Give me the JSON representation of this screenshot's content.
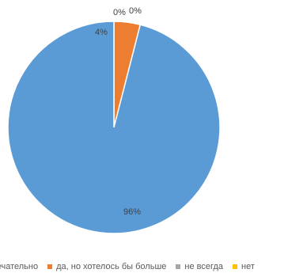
{
  "chart_data": {
    "type": "pie",
    "title": "",
    "series": [
      {
        "values": [
          96,
          4,
          0,
          0
        ],
        "data_labels": [
          "96%",
          "4%",
          "0%",
          "0%"
        ]
      }
    ],
    "categories": [
      "замечательно",
      "да, но хотелось бы больше",
      "не всегда",
      "нет"
    ],
    "colors": [
      "#5b9bd5",
      "#ed7d31",
      "#a5a5a5",
      "#ffc000"
    ],
    "legend_position": "bottom"
  },
  "legend": {
    "items": [
      {
        "label": "замечательно",
        "color": "#5b9bd5"
      },
      {
        "label": "да, но хотелось бы больше",
        "color": "#ed7d31"
      },
      {
        "label": "не всегда",
        "color": "#a5a5a5"
      },
      {
        "label": "нет",
        "color": "#ffc000"
      }
    ]
  }
}
